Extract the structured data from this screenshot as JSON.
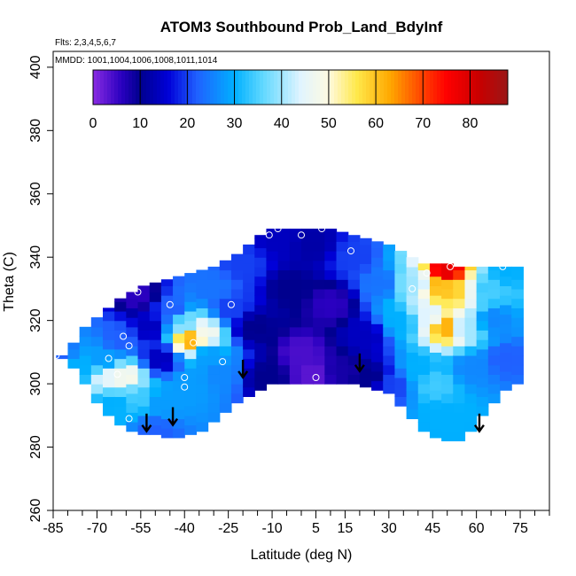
{
  "chart_data": {
    "type": "heatmap",
    "title": "ATOM3 Southbound Prob_Land_BdyInf",
    "flights_label": "Flts: 2,3,4,5,6,7",
    "dates_label": "MMDD: 1001,1004,1006,1008,1011,1014",
    "xlabel": "Latitude (deg N)",
    "ylabel": "Theta (C)",
    "xlim": [
      -85,
      85
    ],
    "ylim": [
      260,
      405
    ],
    "x_major_ticks": [
      -85,
      -70,
      -55,
      -40,
      -25,
      -10,
      5,
      15,
      30,
      45,
      60,
      75
    ],
    "x_minor_ticks": [
      -80,
      -75,
      -65,
      -60,
      -50,
      -45,
      -35,
      -30,
      -20,
      -15,
      -5,
      0,
      10,
      20,
      25,
      35,
      40,
      50,
      55,
      65,
      70,
      80,
      85
    ],
    "y_ticks": [
      260,
      280,
      300,
      320,
      340,
      360,
      380,
      400
    ],
    "colorbar": {
      "ticks": [
        0,
        10,
        20,
        30,
        40,
        50,
        60,
        70,
        80
      ],
      "min": 0,
      "max": 88,
      "stops": [
        {
          "v": 0,
          "c": "#8a2be2"
        },
        {
          "v": 6,
          "c": "#2a00c0"
        },
        {
          "v": 10,
          "c": "#00008e"
        },
        {
          "v": 16,
          "c": "#0000d8"
        },
        {
          "v": 22,
          "c": "#2060ff"
        },
        {
          "v": 30,
          "c": "#00b0ff"
        },
        {
          "v": 36,
          "c": "#60d8ff"
        },
        {
          "v": 44,
          "c": "#e0f4ff"
        },
        {
          "v": 50,
          "c": "#fffae0"
        },
        {
          "v": 56,
          "c": "#ffe84a"
        },
        {
          "v": 63,
          "c": "#ffa800"
        },
        {
          "v": 70,
          "c": "#ff4000"
        },
        {
          "v": 75,
          "c": "#ff0000"
        },
        {
          "v": 82,
          "c": "#c80000"
        },
        {
          "v": 88,
          "c": "#9a1818"
        }
      ]
    },
    "field": {
      "lat": [
        -84,
        -80,
        -76,
        -72,
        -68,
        -64,
        -60,
        -56,
        -52,
        -48,
        -44,
        -40,
        -36,
        -32,
        -28,
        -24,
        -20,
        -16,
        -12,
        -8,
        -4,
        0,
        4,
        8,
        12,
        16,
        20,
        24,
        28,
        32,
        36,
        40,
        44,
        48,
        52,
        56,
        60,
        64,
        68,
        72
      ],
      "theta_bottom": [
        308,
        305,
        300,
        294,
        290,
        287,
        285,
        284,
        284,
        283,
        283,
        284,
        285,
        288,
        291,
        294,
        296,
        298,
        300,
        300,
        300,
        300,
        300,
        300,
        300,
        300,
        299,
        298,
        297,
        293,
        289,
        285,
        283,
        282,
        282,
        285,
        290,
        294,
        298,
        300
      ],
      "theta_top": [
        309,
        313,
        318,
        321,
        324,
        327,
        329,
        331,
        332,
        333,
        334,
        335,
        336,
        337,
        339,
        341,
        344,
        347,
        349,
        349,
        349,
        349,
        349,
        349,
        348,
        347,
        346,
        345,
        344,
        342,
        340,
        338,
        338,
        338,
        337,
        337,
        337,
        337,
        337,
        337
      ],
      "control_points": [
        {
          "lat": -84,
          "theta": 309,
          "v": 22
        },
        {
          "lat": -76,
          "theta": 305,
          "v": 30
        },
        {
          "lat": -68,
          "theta": 308,
          "v": 28
        },
        {
          "lat": -66,
          "theta": 302,
          "v": 45
        },
        {
          "lat": -60,
          "theta": 302,
          "v": 48
        },
        {
          "lat": -64,
          "theta": 294,
          "v": 30
        },
        {
          "lat": -70,
          "theta": 290,
          "v": 30
        },
        {
          "lat": -56,
          "theta": 296,
          "v": 34
        },
        {
          "lat": -48,
          "theta": 294,
          "v": 28
        },
        {
          "lat": -50,
          "theta": 285,
          "v": 22
        },
        {
          "lat": -62,
          "theta": 314,
          "v": 22
        },
        {
          "lat": -56,
          "theta": 328,
          "v": 6
        },
        {
          "lat": -52,
          "theta": 318,
          "v": 14
        },
        {
          "lat": -48,
          "theta": 308,
          "v": 14
        },
        {
          "lat": -44,
          "theta": 323,
          "v": 22
        },
        {
          "lat": -40,
          "theta": 319,
          "v": 38
        },
        {
          "lat": -38,
          "theta": 314,
          "v": 62
        },
        {
          "lat": -34,
          "theta": 316,
          "v": 48
        },
        {
          "lat": -32,
          "theta": 309,
          "v": 28
        },
        {
          "lat": -28,
          "theta": 303,
          "v": 26
        },
        {
          "lat": -38,
          "theta": 300,
          "v": 28
        },
        {
          "lat": -30,
          "theta": 330,
          "v": 24
        },
        {
          "lat": -24,
          "theta": 324,
          "v": 20
        },
        {
          "lat": -20,
          "theta": 338,
          "v": 20
        },
        {
          "lat": -16,
          "theta": 318,
          "v": 10
        },
        {
          "lat": -12,
          "theta": 302,
          "v": 10
        },
        {
          "lat": -8,
          "theta": 346,
          "v": 14
        },
        {
          "lat": -4,
          "theta": 330,
          "v": 10
        },
        {
          "lat": 0,
          "theta": 310,
          "v": 4
        },
        {
          "lat": 4,
          "theta": 303,
          "v": 3
        },
        {
          "lat": 4,
          "theta": 344,
          "v": 12
        },
        {
          "lat": 10,
          "theta": 325,
          "v": 6
        },
        {
          "lat": 14,
          "theta": 304,
          "v": 8
        },
        {
          "lat": 18,
          "theta": 340,
          "v": 20
        },
        {
          "lat": 22,
          "theta": 315,
          "v": 14
        },
        {
          "lat": 24,
          "theta": 302,
          "v": 10
        },
        {
          "lat": 28,
          "theta": 332,
          "v": 24
        },
        {
          "lat": 30,
          "theta": 300,
          "v": 20
        },
        {
          "lat": 34,
          "theta": 320,
          "v": 30
        },
        {
          "lat": 38,
          "theta": 332,
          "v": 40
        },
        {
          "lat": 40,
          "theta": 305,
          "v": 30
        },
        {
          "lat": 43,
          "theta": 322,
          "v": 44
        },
        {
          "lat": 46,
          "theta": 300,
          "v": 34
        },
        {
          "lat": 48,
          "theta": 330,
          "v": 60
        },
        {
          "lat": 50,
          "theta": 336,
          "v": 78
        },
        {
          "lat": 50,
          "theta": 318,
          "v": 62
        },
        {
          "lat": 48,
          "theta": 290,
          "v": 30
        },
        {
          "lat": 54,
          "theta": 330,
          "v": 58
        },
        {
          "lat": 56,
          "theta": 318,
          "v": 40
        },
        {
          "lat": 58,
          "theta": 305,
          "v": 26
        },
        {
          "lat": 62,
          "theta": 330,
          "v": 34
        },
        {
          "lat": 66,
          "theta": 320,
          "v": 26
        },
        {
          "lat": 70,
          "theta": 336,
          "v": 30
        },
        {
          "lat": 70,
          "theta": 308,
          "v": 22
        }
      ]
    },
    "sample_points": [
      {
        "lat": -84,
        "theta": 309
      },
      {
        "lat": -66,
        "theta": 308
      },
      {
        "lat": -61,
        "theta": 315
      },
      {
        "lat": -59,
        "theta": 312
      },
      {
        "lat": -56,
        "theta": 329
      },
      {
        "lat": -45,
        "theta": 325
      },
      {
        "lat": -37,
        "theta": 313
      },
      {
        "lat": -40,
        "theta": 302
      },
      {
        "lat": -40,
        "theta": 299
      },
      {
        "lat": -24,
        "theta": 325
      },
      {
        "lat": -27,
        "theta": 307
      },
      {
        "lat": -63,
        "theta": 303
      },
      {
        "lat": -59,
        "theta": 289
      },
      {
        "lat": -72,
        "theta": 289
      },
      {
        "lat": -66,
        "theta": 287
      },
      {
        "lat": -11,
        "theta": 347
      },
      {
        "lat": -8,
        "theta": 349
      },
      {
        "lat": 0,
        "theta": 347
      },
      {
        "lat": 5,
        "theta": 302
      },
      {
        "lat": 7,
        "theta": 349
      },
      {
        "lat": 17,
        "theta": 342
      },
      {
        "lat": 38,
        "theta": 330
      },
      {
        "lat": 43,
        "theta": 335
      },
      {
        "lat": 51,
        "theta": 337
      },
      {
        "lat": 69,
        "theta": 337
      }
    ],
    "arrows": [
      {
        "lat": -53,
        "theta": 285
      },
      {
        "lat": -44,
        "theta": 287
      },
      {
        "lat": -20,
        "theta": 302
      },
      {
        "lat": 20,
        "theta": 304
      },
      {
        "lat": 61,
        "theta": 285
      }
    ],
    "grid": false,
    "legend": "colorbar top"
  }
}
